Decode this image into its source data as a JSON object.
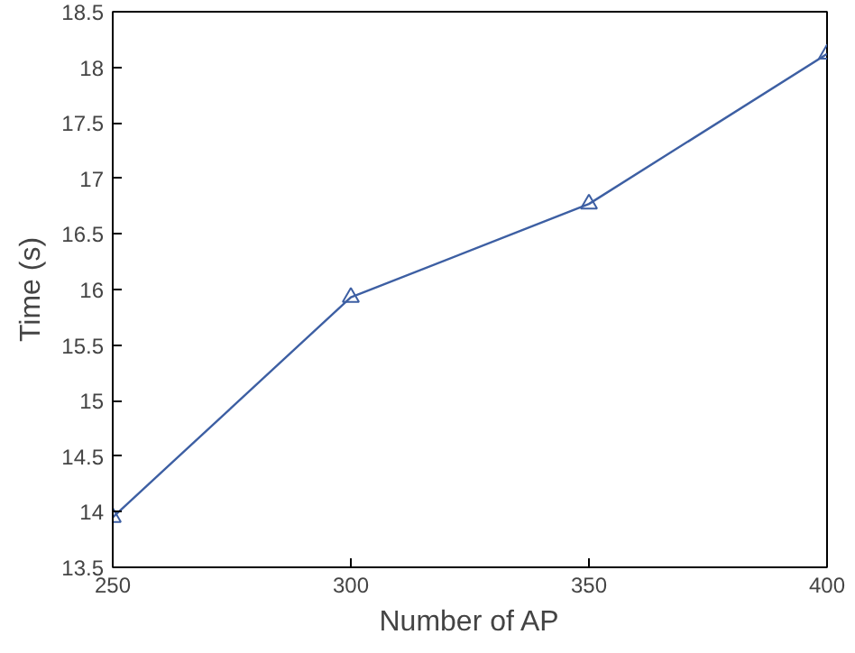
{
  "chart_data": {
    "type": "line",
    "xlabel": "Number of AP",
    "ylabel": "Time (s)",
    "x": [
      250,
      300,
      350,
      400
    ],
    "series": [
      {
        "color": "#3d5fa3",
        "values": [
          13.95,
          15.93,
          16.77,
          18.12
        ]
      }
    ],
    "xlim": [
      250,
      400
    ],
    "xticks": [
      250,
      300,
      350,
      400
    ],
    "ylim": [
      13.5,
      18.5
    ],
    "yticks": [
      13.5,
      14,
      14.5,
      15,
      15.5,
      16,
      16.5,
      17,
      17.5,
      18,
      18.5
    ],
    "marker": "triangle",
    "line_style": "solid",
    "grid": false
  }
}
